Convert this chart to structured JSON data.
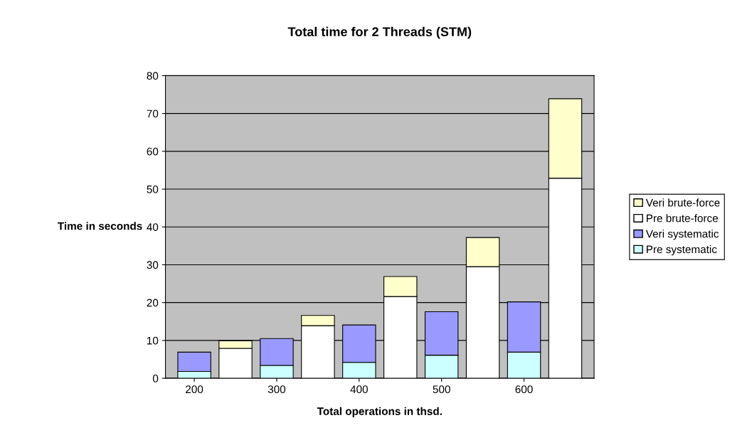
{
  "chart_data": {
    "type": "bar",
    "title": "Total time for 2 Threads (STM)",
    "xlabel": "Total operations in thsd.",
    "ylabel": "Time in seconds",
    "categories": [
      "200",
      null,
      "300",
      null,
      "400",
      null,
      "500",
      null,
      "600",
      null
    ],
    "stacked": true,
    "series": [
      {
        "name": "Pre systematic",
        "color": "#ccffff",
        "values": [
          1.8,
          null,
          3.4,
          null,
          4.2,
          null,
          6.1,
          null,
          6.9,
          null
        ]
      },
      {
        "name": "Veri systematic",
        "color": "#9999ff",
        "values": [
          5.1,
          null,
          7.1,
          null,
          9.9,
          null,
          11.5,
          null,
          13.3,
          null
        ]
      },
      {
        "name": "Pre brute-force",
        "color": "#ffffff",
        "values": [
          null,
          7.9,
          null,
          13.9,
          null,
          21.6,
          null,
          29.5,
          null,
          52.9
        ]
      },
      {
        "name": "Veri brute-force",
        "color": "#ffffcc",
        "values": [
          null,
          2.0,
          null,
          2.7,
          null,
          5.3,
          null,
          7.7,
          null,
          21.0
        ]
      }
    ],
    "ylim": [
      0,
      80
    ],
    "yticks": [
      0,
      10,
      20,
      30,
      40,
      50,
      60,
      70,
      80
    ],
    "grid": "y",
    "legend": "right"
  }
}
